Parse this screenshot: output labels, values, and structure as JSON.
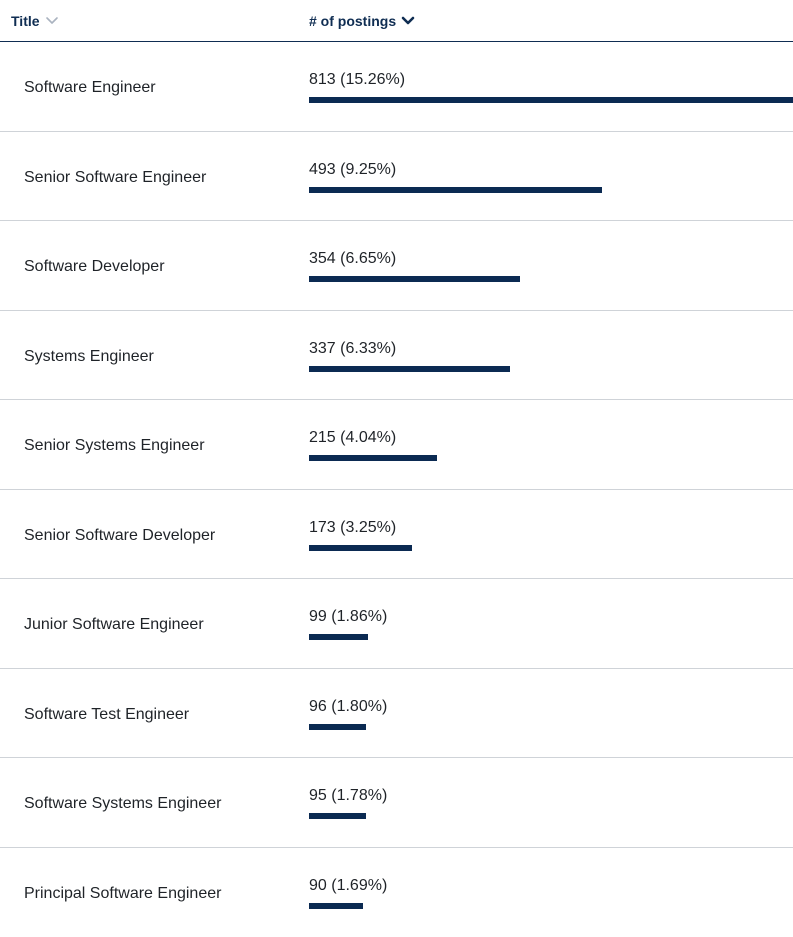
{
  "header": {
    "title_label": "Title",
    "postings_label": "# of postings"
  },
  "colors": {
    "bar": "#0b2a52",
    "header_text": "#0f2d52",
    "inactive_sort_icon": "#aab3c0"
  },
  "rows": [
    {
      "title": "Software Engineer",
      "count": 813,
      "display": "813 (15.26%)"
    },
    {
      "title": "Senior Software Engineer",
      "count": 493,
      "display": "493 (9.25%)"
    },
    {
      "title": "Software Developer",
      "count": 354,
      "display": "354 (6.65%)"
    },
    {
      "title": "Systems Engineer",
      "count": 337,
      "display": "337 (6.33%)"
    },
    {
      "title": "Senior Systems Engineer",
      "count": 215,
      "display": "215 (4.04%)"
    },
    {
      "title": "Senior Software Developer",
      "count": 173,
      "display": "173 (3.25%)"
    },
    {
      "title": "Junior Software Engineer",
      "count": 99,
      "display": "99 (1.86%)"
    },
    {
      "title": "Software Test Engineer",
      "count": 96,
      "display": "96 (1.80%)"
    },
    {
      "title": "Software Systems Engineer",
      "count": 95,
      "display": "95 (1.78%)"
    },
    {
      "title": "Principal Software Engineer",
      "count": 90,
      "display": "90 (1.69%)"
    }
  ]
}
